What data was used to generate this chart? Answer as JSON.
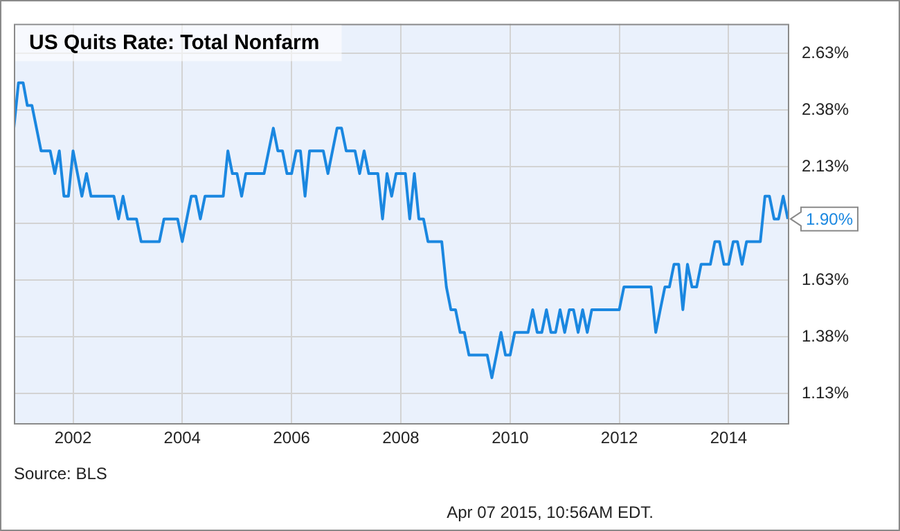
{
  "chart_data": {
    "type": "line",
    "title": "US Quits Rate: Total Nonfarm",
    "x": [
      "2000-12",
      "2001-01",
      "2001-02",
      "2001-03",
      "2001-04",
      "2001-06",
      "2001-08",
      "2001-09",
      "2001-10",
      "2001-11",
      "2001-12",
      "2002-01",
      "2002-03",
      "2002-04",
      "2002-05",
      "2002-10",
      "2002-11",
      "2002-12",
      "2003-01",
      "2003-03",
      "2003-04",
      "2003-08",
      "2003-09",
      "2003-12",
      "2004-01",
      "2004-03",
      "2004-04",
      "2004-05",
      "2004-06",
      "2004-10",
      "2004-11",
      "2004-12",
      "2005-01",
      "2005-02",
      "2005-03",
      "2005-07",
      "2005-09",
      "2005-10",
      "2005-11",
      "2005-12",
      "2006-01",
      "2006-02",
      "2006-03",
      "2006-04",
      "2006-05",
      "2006-08",
      "2006-09",
      "2006-11",
      "2006-12",
      "2007-01",
      "2007-03",
      "2007-04",
      "2007-05",
      "2007-06",
      "2007-08",
      "2007-09",
      "2007-10",
      "2007-11",
      "2007-12",
      "2008-02",
      "2008-03",
      "2008-04",
      "2008-05",
      "2008-06",
      "2008-07",
      "2008-10",
      "2008-11",
      "2008-12",
      "2009-01",
      "2009-02",
      "2009-03",
      "2009-04",
      "2009-08",
      "2009-09",
      "2009-11",
      "2009-12",
      "2010-01",
      "2010-02",
      "2010-05",
      "2010-06",
      "2010-07",
      "2010-08",
      "2010-09",
      "2010-10",
      "2010-11",
      "2010-12",
      "2011-01",
      "2011-02",
      "2011-03",
      "2011-04",
      "2011-05",
      "2011-06",
      "2011-07",
      "2012-01",
      "2012-02",
      "2012-08",
      "2012-09",
      "2012-10",
      "2012-11",
      "2012-12",
      "2013-01",
      "2013-02",
      "2013-03",
      "2013-04",
      "2013-05",
      "2013-06",
      "2013-07",
      "2013-09",
      "2013-10",
      "2013-11",
      "2013-12",
      "2014-01",
      "2014-02",
      "2014-03",
      "2014-04",
      "2014-05",
      "2014-08",
      "2014-09",
      "2014-10",
      "2014-11",
      "2014-12",
      "2015-01",
      "2015-02"
    ],
    "values": [
      2.3,
      2.5,
      2.5,
      2.4,
      2.4,
      2.2,
      2.2,
      2.1,
      2.2,
      2.0,
      2.0,
      2.2,
      2.0,
      2.1,
      2.0,
      2.0,
      1.9,
      2.0,
      1.9,
      1.9,
      1.8,
      1.8,
      1.9,
      1.9,
      1.8,
      2.0,
      2.0,
      1.9,
      2.0,
      2.0,
      2.2,
      2.1,
      2.1,
      2.0,
      2.1,
      2.1,
      2.3,
      2.2,
      2.2,
      2.1,
      2.1,
      2.2,
      2.2,
      2.0,
      2.2,
      2.2,
      2.1,
      2.3,
      2.3,
      2.2,
      2.2,
      2.1,
      2.2,
      2.1,
      2.1,
      1.9,
      2.1,
      2.0,
      2.1,
      2.1,
      1.9,
      2.1,
      1.9,
      1.9,
      1.8,
      1.8,
      1.6,
      1.5,
      1.5,
      1.4,
      1.4,
      1.3,
      1.3,
      1.2,
      1.4,
      1.3,
      1.3,
      1.4,
      1.4,
      1.5,
      1.4,
      1.4,
      1.5,
      1.4,
      1.4,
      1.5,
      1.4,
      1.5,
      1.5,
      1.4,
      1.5,
      1.4,
      1.5,
      1.5,
      1.6,
      1.6,
      1.4,
      1.5,
      1.6,
      1.6,
      1.7,
      1.7,
      1.5,
      1.7,
      1.6,
      1.6,
      1.7,
      1.7,
      1.8,
      1.8,
      1.7,
      1.7,
      1.8,
      1.8,
      1.7,
      1.8,
      1.8,
      2.0,
      2.0,
      1.9,
      1.9,
      2.0,
      1.9
    ],
    "color": "#1a87e0",
    "xlim": [
      "2000-12",
      "2015-02"
    ],
    "xticks": [
      "2002",
      "2004",
      "2006",
      "2008",
      "2010",
      "2012",
      "2014"
    ],
    "ylim": [
      1.0,
      2.76
    ],
    "yticks": [
      {
        "value": 1.13,
        "label": "1.13%"
      },
      {
        "value": 1.38,
        "label": "1.38%"
      },
      {
        "value": 1.63,
        "label": "1.63%"
      },
      {
        "value": 1.88,
        "label": null
      },
      {
        "value": 2.13,
        "label": "2.13%"
      },
      {
        "value": 2.38,
        "label": "2.38%"
      },
      {
        "value": 2.63,
        "label": "2.63%"
      }
    ],
    "grid": true,
    "legend": false,
    "marker": "none",
    "line_style": "solid",
    "annotations": [
      {
        "text": "1.90%",
        "x": "2015-02",
        "y": 1.9
      },
      "Source: BLS",
      "Apr 07 2015, 10:56AM EDT."
    ]
  }
}
